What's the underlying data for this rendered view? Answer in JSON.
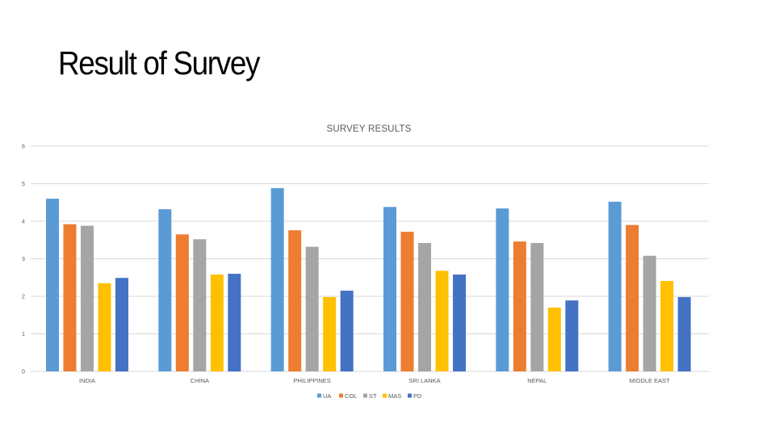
{
  "slide": {
    "title": "Result of Survey"
  },
  "chart_data": {
    "type": "bar",
    "title": "SURVEY RESULTS",
    "xlabel": "",
    "ylabel": "",
    "categories": [
      "INDIA",
      "CHINA",
      "PHILIPPINES",
      "SRI LANKA",
      "NEPAL",
      "MIDDLE EAST"
    ],
    "series": [
      {
        "name": "UA",
        "color": "#5b9bd5",
        "values": [
          4.6,
          4.32,
          4.88,
          4.38,
          4.34,
          4.52
        ]
      },
      {
        "name": "COL",
        "color": "#ed7d31",
        "values": [
          3.92,
          3.65,
          3.76,
          3.72,
          3.46,
          3.9
        ]
      },
      {
        "name": "ST",
        "color": "#a5a5a5",
        "values": [
          3.88,
          3.52,
          3.32,
          3.42,
          3.42,
          3.08
        ]
      },
      {
        "name": "MAS",
        "color": "#ffc000",
        "values": [
          2.35,
          2.58,
          1.98,
          2.68,
          1.7,
          2.41
        ]
      },
      {
        "name": "PD",
        "color": "#4472c4",
        "values": [
          2.49,
          2.6,
          2.15,
          2.58,
          1.89,
          1.98
        ]
      }
    ],
    "ylim": [
      0,
      6
    ],
    "yticks": [
      "0",
      "1",
      "2",
      "3",
      "4",
      "5",
      "6"
    ],
    "grid": true,
    "legend_position": "bottom"
  }
}
